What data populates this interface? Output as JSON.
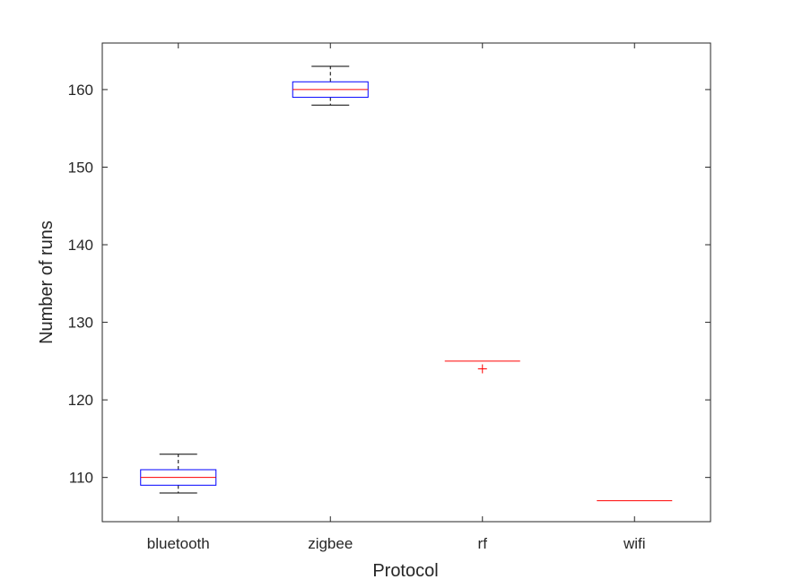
{
  "chart_data": {
    "type": "box",
    "title": "",
    "xlabel": "Protocol",
    "ylabel": "Number of runs",
    "categories": [
      "bluetooth",
      "zigbee",
      "rf",
      "wifi"
    ],
    "ylim": [
      104.3,
      166
    ],
    "yticks": [
      110,
      120,
      130,
      140,
      150,
      160
    ],
    "grid": false,
    "boxes": [
      {
        "category": "bluetooth",
        "whisker_low": 108,
        "q1": 109,
        "median": 110,
        "q3": 111,
        "whisker_high": 113,
        "outliers": []
      },
      {
        "category": "zigbee",
        "whisker_low": 158,
        "q1": 159,
        "median": 160,
        "q3": 161,
        "whisker_high": 163,
        "outliers": []
      },
      {
        "category": "rf",
        "whisker_low": 125,
        "q1": 125,
        "median": 125,
        "q3": 125,
        "whisker_high": 125,
        "outliers": [
          124
        ]
      },
      {
        "category": "wifi",
        "whisker_low": 107,
        "q1": 107,
        "median": 107,
        "q3": 107,
        "whisker_high": 107,
        "outliers": []
      }
    ],
    "colors": {
      "box": "#0000ff",
      "median": "#ff0000",
      "whisker": "#000000",
      "outlier": "#ff0000",
      "axis": "#262626"
    }
  }
}
